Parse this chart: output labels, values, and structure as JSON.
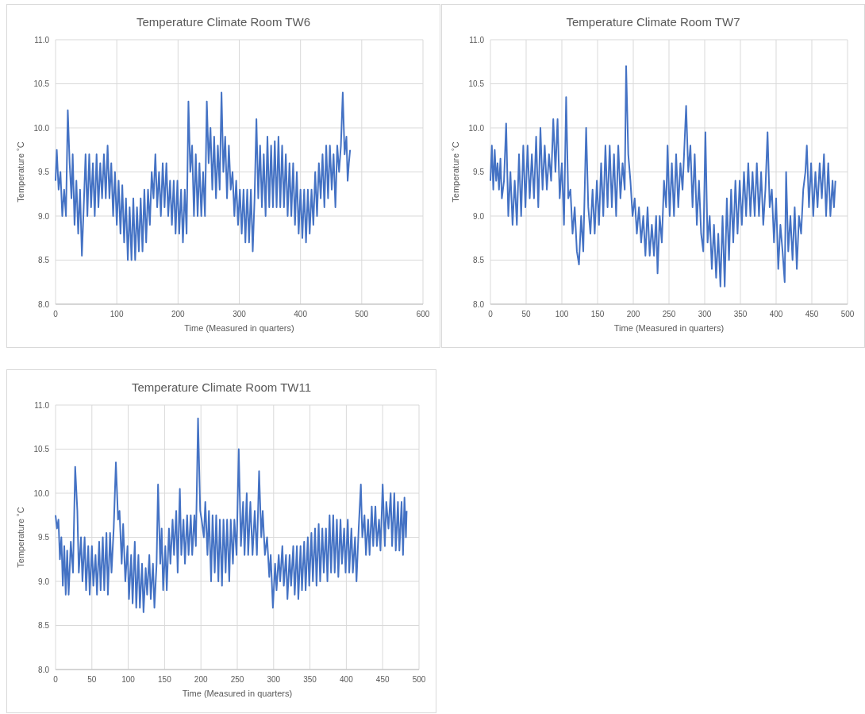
{
  "chart_data": [
    {
      "type": "line",
      "title": "Temperature  Climate Room TW6",
      "xlabel": "Time (Measured in quarters)",
      "ylabel": "Temperature ˚C",
      "grid": true,
      "xlim": [
        0,
        600
      ],
      "xticks": [
        0,
        100,
        200,
        300,
        400,
        500,
        600
      ],
      "ylim": [
        8,
        11
      ],
      "yticks": [
        {
          "value": 8,
          "label": "8.0"
        },
        {
          "value": 8.5,
          "label": "8.5"
        },
        {
          "value": 9,
          "label": "9.0"
        },
        {
          "value": 9.5,
          "label": "9.5"
        },
        {
          "value": 10,
          "label": "10.0"
        },
        {
          "value": 10.5,
          "label": "10.5"
        },
        {
          "value": 11,
          "label": "11.0"
        }
      ],
      "x": [
        0,
        2,
        5,
        8,
        11,
        14,
        17,
        20,
        23,
        26,
        28,
        31,
        34,
        37,
        40,
        43,
        46,
        49,
        52,
        55,
        58,
        61,
        64,
        67,
        70,
        73,
        76,
        79,
        82,
        85,
        88,
        91,
        94,
        97,
        100,
        103,
        106,
        109,
        112,
        115,
        118,
        121,
        124,
        127,
        130,
        133,
        136,
        139,
        142,
        145,
        148,
        151,
        154,
        157,
        160,
        163,
        166,
        169,
        172,
        175,
        178,
        181,
        184,
        187,
        190,
        193,
        196,
        199,
        202,
        205,
        208,
        211,
        214,
        217,
        220,
        223,
        226,
        229,
        232,
        235,
        238,
        241,
        244,
        247,
        250,
        253,
        256,
        259,
        262,
        265,
        268,
        271,
        274,
        277,
        280,
        283,
        286,
        289,
        292,
        295,
        298,
        301,
        304,
        307,
        310,
        313,
        316,
        319,
        322,
        325,
        328,
        331,
        334,
        337,
        340,
        343,
        346,
        349,
        352,
        355,
        358,
        361,
        364,
        367,
        370,
        373,
        376,
        379,
        382,
        385,
        388,
        391,
        394,
        397,
        400,
        403,
        406,
        409,
        412,
        415,
        418,
        421,
        424,
        427,
        430,
        433,
        436,
        439,
        442,
        445,
        448,
        451,
        454,
        457,
        460,
        463,
        466,
        469,
        472,
        475,
        477,
        479,
        481
      ],
      "series": [
        {
          "color": "#4472c4",
          "values": [
            9.4,
            9.75,
            9.3,
            9.5,
            9.0,
            9.3,
            9.0,
            10.2,
            9.6,
            9.2,
            9.7,
            8.9,
            9.4,
            8.8,
            9.3,
            8.55,
            9.1,
            9.7,
            9.0,
            9.7,
            9.1,
            9.6,
            9.0,
            9.7,
            9.1,
            9.6,
            9.2,
            9.7,
            9.2,
            9.8,
            9.2,
            9.6,
            9.0,
            9.5,
            8.9,
            9.4,
            8.8,
            9.35,
            8.7,
            9.2,
            8.5,
            9.1,
            8.5,
            9.2,
            8.5,
            9.1,
            8.6,
            9.2,
            8.6,
            9.3,
            8.7,
            9.3,
            8.9,
            9.5,
            9.2,
            9.7,
            9.1,
            9.5,
            9.0,
            9.6,
            9.1,
            9.6,
            9.0,
            9.4,
            8.9,
            9.4,
            8.8,
            9.4,
            8.8,
            9.3,
            8.7,
            9.3,
            8.8,
            10.3,
            9.5,
            9.8,
            9.0,
            9.7,
            9.0,
            9.6,
            9.0,
            9.5,
            9.0,
            10.3,
            9.6,
            10.0,
            9.3,
            9.9,
            9.2,
            9.8,
            9.3,
            10.4,
            9.5,
            9.9,
            9.2,
            9.8,
            9.3,
            9.5,
            9.0,
            9.4,
            8.9,
            9.3,
            8.8,
            9.3,
            8.7,
            9.3,
            8.7,
            9.3,
            8.6,
            9.2,
            10.1,
            9.2,
            9.8,
            9.1,
            9.7,
            9.0,
            9.9,
            9.1,
            9.8,
            9.1,
            9.85,
            9.1,
            9.9,
            9.1,
            9.8,
            9.1,
            9.7,
            9.0,
            9.6,
            9.0,
            9.6,
            8.9,
            9.5,
            8.8,
            9.3,
            8.75,
            9.3,
            8.7,
            9.3,
            8.8,
            9.3,
            8.9,
            9.5,
            9.0,
            9.6,
            9.2,
            9.7,
            9.1,
            9.8,
            9.2,
            9.8,
            9.3,
            9.7,
            9.1,
            9.8,
            9.5,
            9.8,
            10.4,
            9.7,
            9.9,
            9.4,
            9.6,
            9.75
          ]
        }
      ]
    },
    {
      "type": "line",
      "title": "Temperature  Climate Room TW7",
      "xlabel": "Time (Measured in quarters)",
      "ylabel": "Temperature ˚C",
      "grid": true,
      "xlim": [
        0,
        500
      ],
      "xticks": [
        0,
        50,
        100,
        150,
        200,
        250,
        300,
        350,
        400,
        450,
        500
      ],
      "ylim": [
        8,
        11
      ],
      "yticks": [
        {
          "value": 8,
          "label": "8.0"
        },
        {
          "value": 8.5,
          "label": "8.5"
        },
        {
          "value": 9,
          "label": "9.0"
        },
        {
          "value": 9.5,
          "label": "9.5"
        },
        {
          "value": 10,
          "label": "10.0"
        },
        {
          "value": 10.5,
          "label": "10.5"
        },
        {
          "value": 11,
          "label": "11.0"
        }
      ],
      "x": [
        0,
        2,
        4,
        6,
        8,
        10,
        12,
        14,
        16,
        19,
        22,
        25,
        28,
        31,
        34,
        37,
        40,
        43,
        46,
        49,
        52,
        55,
        58,
        61,
        64,
        67,
        70,
        73,
        76,
        79,
        82,
        85,
        88,
        91,
        94,
        97,
        100,
        103,
        106,
        109,
        112,
        115,
        118,
        121,
        124,
        127,
        130,
        134,
        137,
        140,
        143,
        146,
        149,
        152,
        155,
        158,
        161,
        164,
        167,
        170,
        173,
        176,
        179,
        182,
        185,
        188,
        190,
        193,
        196,
        199,
        202,
        205,
        208,
        211,
        214,
        217,
        220,
        223,
        226,
        229,
        232,
        234,
        237,
        240,
        243,
        246,
        248,
        251,
        254,
        257,
        260,
        263,
        266,
        269,
        274,
        277,
        280,
        283,
        286,
        289,
        292,
        295,
        298,
        301,
        304,
        307,
        310,
        313,
        316,
        319,
        322,
        325,
        328,
        331,
        334,
        337,
        340,
        343,
        346,
        349,
        352,
        355,
        358,
        361,
        364,
        367,
        370,
        373,
        376,
        379,
        382,
        385,
        388,
        391,
        394,
        397,
        400,
        403,
        406,
        409,
        412,
        414,
        417,
        420,
        423,
        426,
        429,
        432,
        435,
        438,
        441,
        443,
        446,
        449,
        452,
        455,
        458,
        461,
        464,
        467,
        470,
        473,
        476,
        479,
        481,
        483
      ],
      "series": [
        {
          "color": "#4472c4",
          "values": [
            9.4,
            9.8,
            9.3,
            9.75,
            9.4,
            9.6,
            9.3,
            9.65,
            9.2,
            9.4,
            10.05,
            9.0,
            9.5,
            8.9,
            9.4,
            8.9,
            9.7,
            9.0,
            9.8,
            9.1,
            9.8,
            9.2,
            9.7,
            9.2,
            9.9,
            9.1,
            10.0,
            9.3,
            9.8,
            9.3,
            9.7,
            9.4,
            10.1,
            9.5,
            10.1,
            9.2,
            9.6,
            8.9,
            10.35,
            9.2,
            9.3,
            8.8,
            9.1,
            8.6,
            8.45,
            9.0,
            8.6,
            10.0,
            9.1,
            8.8,
            9.3,
            8.8,
            9.4,
            8.9,
            9.6,
            9.0,
            9.8,
            9.1,
            9.8,
            9.1,
            9.7,
            9.0,
            9.8,
            9.2,
            9.6,
            9.3,
            10.7,
            9.7,
            9.4,
            9.0,
            9.2,
            8.8,
            9.1,
            8.7,
            9.0,
            8.55,
            9.1,
            8.55,
            8.9,
            8.55,
            9.0,
            8.35,
            9.0,
            8.7,
            9.4,
            9.1,
            9.8,
            9.0,
            9.6,
            9.0,
            9.7,
            9.1,
            9.6,
            9.3,
            10.25,
            9.5,
            9.8,
            9.1,
            9.7,
            8.9,
            9.4,
            8.8,
            8.6,
            9.95,
            8.7,
            9.0,
            8.4,
            8.9,
            8.3,
            8.8,
            8.2,
            9.0,
            8.2,
            9.2,
            8.5,
            9.3,
            8.7,
            9.4,
            8.8,
            9.4,
            8.9,
            9.5,
            9.0,
            9.6,
            9.0,
            9.5,
            9.0,
            9.6,
            9.0,
            9.5,
            8.9,
            9.3,
            9.95,
            9.1,
            9.3,
            8.7,
            9.2,
            8.4,
            8.9,
            8.6,
            8.25,
            9.5,
            8.6,
            9.0,
            8.5,
            9.1,
            8.4,
            9.0,
            8.8,
            9.3,
            9.5,
            9.8,
            9.1,
            9.6,
            9.0,
            9.5,
            9.1,
            9.6,
            9.2,
            9.7,
            9.0,
            9.6,
            9.0,
            9.4,
            9.1,
            9.4
          ]
        }
      ]
    },
    {
      "type": "line",
      "title": "Temperature  Climate Room TW11",
      "xlabel": "Time (Measured in quarters)",
      "ylabel": "Temperature ˚C",
      "grid": true,
      "xlim": [
        0,
        500
      ],
      "xticks": [
        0,
        50,
        100,
        150,
        200,
        250,
        300,
        350,
        400,
        450,
        500
      ],
      "ylim": [
        8,
        11
      ],
      "yticks": [
        {
          "value": 8,
          "label": "8.0"
        },
        {
          "value": 8.5,
          "label": "8.5"
        },
        {
          "value": 9,
          "label": "9.0"
        },
        {
          "value": 9.5,
          "label": "9.5"
        },
        {
          "value": 10,
          "label": "10.0"
        },
        {
          "value": 10.5,
          "label": "10.5"
        },
        {
          "value": 11,
          "label": "11.0"
        }
      ],
      "x": [
        0,
        2,
        4,
        6,
        8,
        10,
        12,
        14,
        16,
        18,
        21,
        24,
        27,
        30,
        32,
        35,
        37,
        40,
        42,
        45,
        47,
        50,
        52,
        55,
        57,
        60,
        62,
        65,
        67,
        70,
        72,
        75,
        77,
        80,
        83,
        86,
        88,
        91,
        93,
        96,
        99,
        101,
        104,
        106,
        109,
        111,
        114,
        116,
        119,
        121,
        124,
        126,
        129,
        131,
        134,
        136,
        139,
        141,
        144,
        146,
        148,
        151,
        153,
        156,
        158,
        161,
        163,
        166,
        168,
        171,
        173,
        176,
        178,
        181,
        183,
        186,
        188,
        191,
        193,
        196,
        199,
        201,
        204,
        206,
        209,
        211,
        214,
        216,
        219,
        221,
        224,
        226,
        229,
        231,
        234,
        236,
        239,
        241,
        244,
        246,
        249,
        252,
        255,
        258,
        260,
        263,
        265,
        268,
        271,
        274,
        277,
        280,
        283,
        285,
        288,
        291,
        294,
        296,
        299,
        302,
        304,
        307,
        309,
        312,
        314,
        317,
        319,
        322,
        324,
        327,
        329,
        332,
        334,
        337,
        339,
        342,
        344,
        347,
        349,
        352,
        354,
        357,
        359,
        362,
        364,
        367,
        369,
        372,
        374,
        377,
        379,
        382,
        384,
        387,
        389,
        392,
        394,
        397,
        399,
        402,
        404,
        407,
        409,
        412,
        414,
        417,
        420,
        422,
        425,
        427,
        430,
        432,
        435,
        437,
        440,
        442,
        445,
        447,
        450,
        453,
        455,
        458,
        461,
        463,
        466,
        468,
        471,
        473,
        476,
        478,
        480,
        482,
        483
      ],
      "series": [
        {
          "color": "#4472c4",
          "values": [
            9.75,
            9.6,
            9.7,
            9.25,
            9.5,
            8.95,
            9.4,
            8.85,
            9.35,
            8.85,
            9.45,
            9.1,
            10.3,
            9.8,
            9.1,
            9.5,
            9.0,
            9.5,
            8.9,
            9.4,
            8.85,
            9.4,
            8.95,
            9.3,
            8.85,
            9.45,
            8.9,
            9.5,
            8.9,
            9.55,
            8.85,
            9.55,
            9.1,
            9.6,
            10.35,
            9.7,
            9.8,
            9.2,
            9.65,
            9.0,
            9.4,
            8.8,
            9.3,
            8.75,
            9.45,
            8.7,
            9.3,
            8.7,
            9.2,
            8.65,
            9.15,
            8.85,
            9.3,
            8.8,
            9.2,
            8.7,
            9.2,
            10.1,
            9.2,
            9.6,
            8.9,
            9.4,
            8.9,
            9.6,
            9.2,
            9.7,
            9.3,
            9.8,
            9.1,
            10.05,
            9.3,
            9.7,
            9.2,
            9.75,
            9.3,
            9.75,
            9.3,
            9.75,
            9.4,
            10.85,
            9.8,
            9.7,
            9.5,
            9.9,
            9.3,
            9.8,
            9.0,
            9.75,
            9.1,
            9.75,
            9.0,
            9.7,
            8.95,
            9.7,
            9.1,
            9.7,
            9.0,
            9.7,
            9.2,
            9.7,
            9.3,
            10.5,
            9.4,
            9.9,
            9.3,
            10.0,
            9.3,
            9.9,
            9.3,
            9.8,
            9.3,
            10.25,
            9.5,
            9.8,
            9.3,
            9.5,
            9.05,
            9.3,
            8.7,
            9.2,
            8.9,
            9.3,
            9.0,
            9.4,
            8.95,
            9.3,
            8.8,
            9.3,
            8.95,
            9.4,
            8.85,
            9.4,
            8.8,
            9.4,
            8.9,
            9.45,
            8.9,
            9.5,
            8.95,
            9.55,
            9.0,
            9.6,
            8.95,
            9.65,
            9.0,
            9.6,
            9.1,
            9.6,
            9.0,
            9.75,
            9.1,
            9.75,
            9.1,
            9.7,
            9.05,
            9.7,
            9.2,
            9.6,
            9.1,
            9.7,
            9.1,
            9.6,
            9.1,
            9.5,
            9.0,
            9.6,
            10.1,
            9.5,
            9.75,
            9.3,
            9.7,
            9.3,
            9.85,
            9.4,
            9.85,
            9.4,
            9.7,
            9.35,
            10.1,
            9.4,
            9.9,
            9.6,
            10.0,
            9.4,
            10.0,
            9.35,
            9.9,
            9.35,
            9.9,
            9.3,
            9.95,
            9.5,
            9.8
          ]
        }
      ]
    }
  ]
}
